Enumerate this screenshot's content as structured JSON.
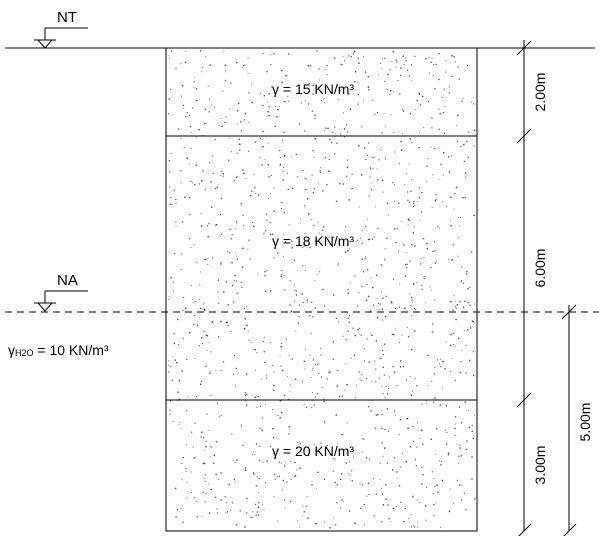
{
  "levels": {
    "ground": {
      "label": "NT"
    },
    "water": {
      "label": "NA"
    }
  },
  "water": {
    "unit_weight_label": "γ",
    "unit_weight_sub": "H2O",
    "unit_weight_value": " = 10 KN/m³"
  },
  "layers": [
    {
      "unit_weight": "γ = 15 KN/m³",
      "thickness_m": 2.0
    },
    {
      "unit_weight": "γ = 18 KN/m³",
      "thickness_m": 6.0
    },
    {
      "unit_weight": "γ = 20 KN/m³",
      "thickness_m": 3.0
    }
  ],
  "dimensions": {
    "layer1": "2.00m",
    "layer2": "6.00m",
    "layer3": "3.00m",
    "below_water": "5.00m"
  }
}
